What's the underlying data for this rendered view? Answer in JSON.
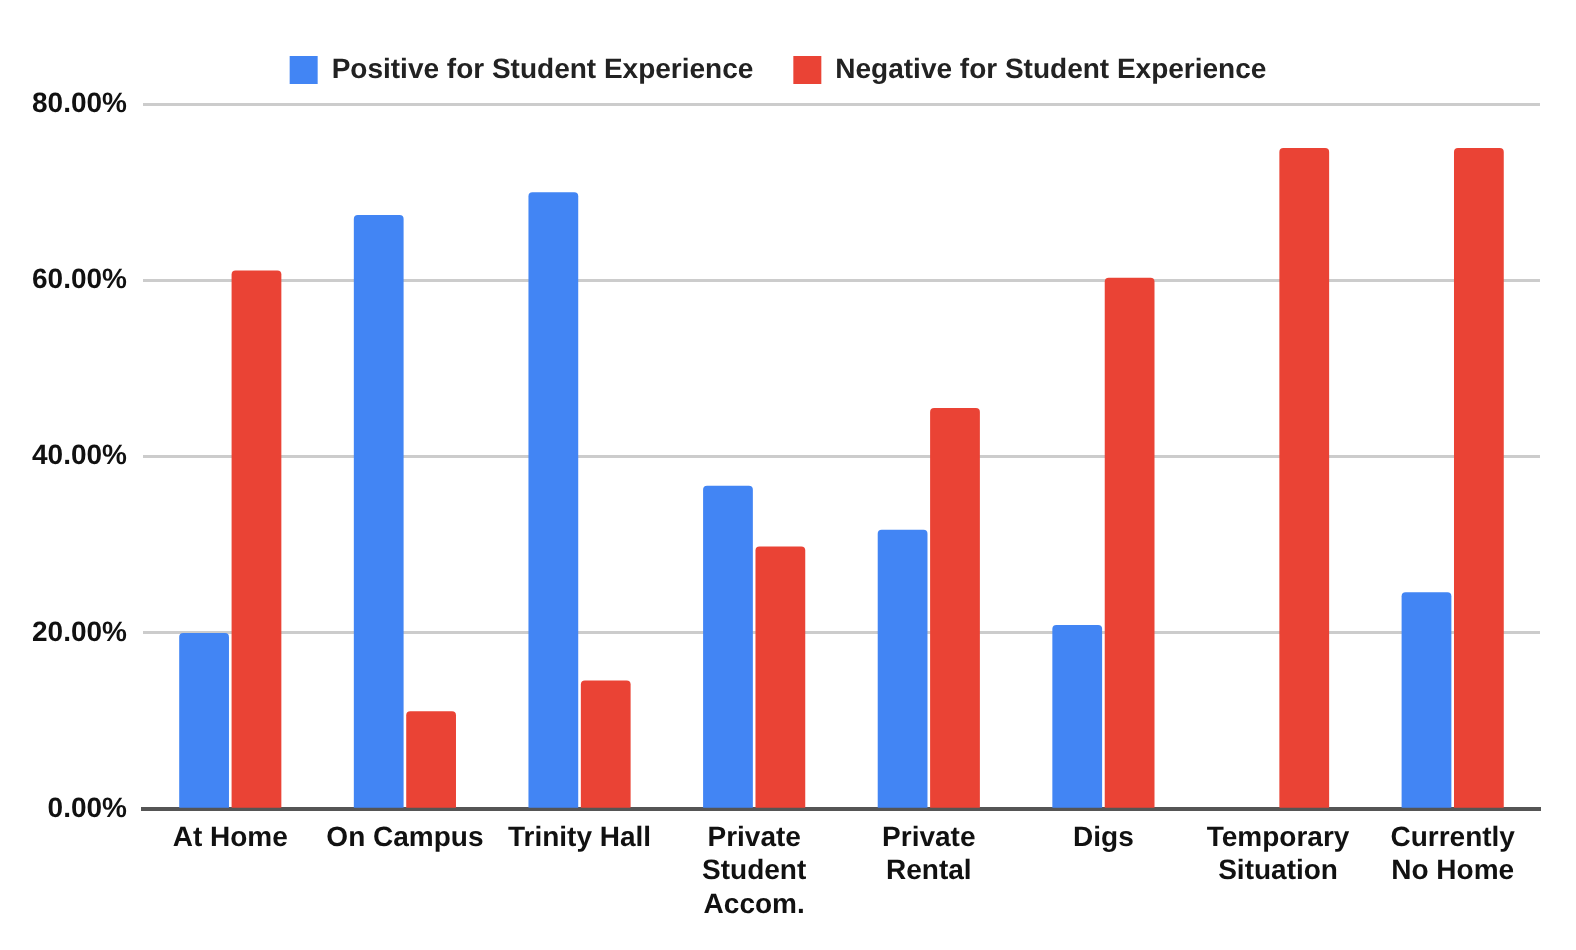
{
  "chart_data": {
    "type": "bar",
    "categories": [
      "At Home",
      "On Campus",
      "Trinity Hall",
      "Private Student Accom.",
      "Private Rental",
      "Digs",
      "Temporary Situation",
      "Currently No Home"
    ],
    "series": [
      {
        "name": "Positive for Student Experience",
        "color": "#4285f4",
        "values": [
          20,
          67.4,
          70,
          36.7,
          31.7,
          20.9,
          0,
          24.6
        ]
      },
      {
        "name": "Negative for Student Experience",
        "color": "#ea4335",
        "values": [
          61.1,
          11.1,
          14.6,
          29.8,
          45.5,
          60.3,
          75,
          75
        ]
      }
    ],
    "ylim": [
      0,
      80
    ],
    "yticks": [
      {
        "value": 0,
        "label": "0.00%"
      },
      {
        "value": 20,
        "label": "20.00%"
      },
      {
        "value": 40,
        "label": "40.00%"
      },
      {
        "value": 60,
        "label": "60.00%"
      },
      {
        "value": 80,
        "label": "80.00%"
      }
    ],
    "grid": "y",
    "legend": "top"
  }
}
